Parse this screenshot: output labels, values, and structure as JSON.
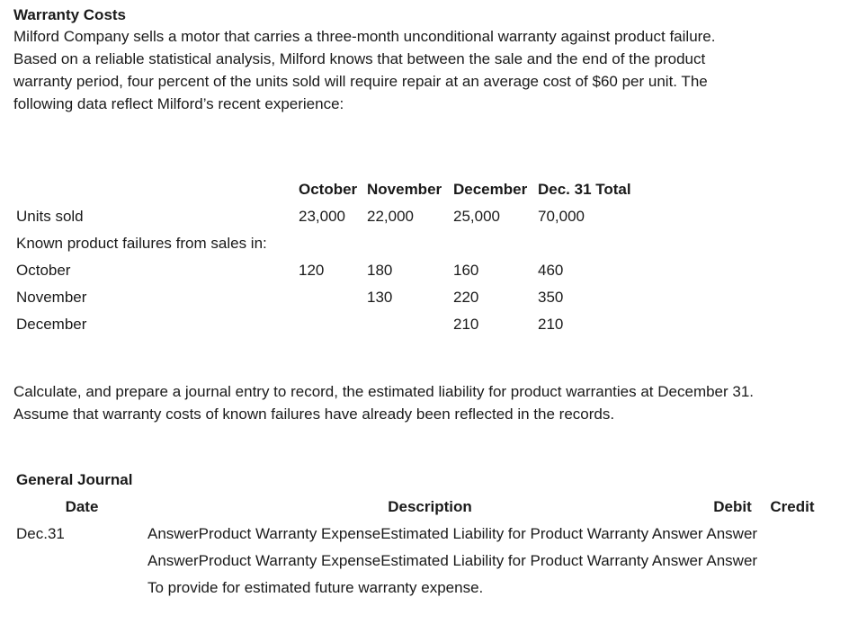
{
  "intro": {
    "title": "Warranty Costs",
    "text_1": "Milford Company sells a motor that carries a three-month unconditional warranty against product failure.",
    "text_2": "Based on a reliable statistical analysis, Milford knows that between the sale and the end of the product",
    "text_3": "warranty period, four percent of the units sold will require repair at an average cost of $60 per unit. The",
    "text_4": "following data reflect Milford’s recent experience:"
  },
  "data_table": {
    "headers": [
      "",
      "October",
      "November",
      "December",
      "Dec. 31 Total"
    ],
    "rows": [
      {
        "label": "Units sold",
        "oct": "23,000",
        "nov": "22,000",
        "dec": "25,000",
        "total": "70,000"
      },
      {
        "label": "Known product failures from sales in:",
        "oct": "",
        "nov": "",
        "dec": "",
        "total": ""
      },
      {
        "label": "October",
        "oct": "120",
        "nov": "180",
        "dec": "160",
        "total": "460"
      },
      {
        "label": "November",
        "oct": "",
        "nov": "130",
        "dec": "220",
        "total": "350"
      },
      {
        "label": "December",
        "oct": "",
        "nov": "",
        "dec": "210",
        "total": "210"
      }
    ]
  },
  "instruction": {
    "line_1": "Calculate, and prepare a journal entry to record, the estimated liability for product warranties at December 31.",
    "line_2": "Assume that warranty costs of known failures have already been reflected in the records."
  },
  "journal": {
    "title": "General Journal",
    "headers": {
      "date": "Date",
      "description": "Description",
      "debit": "Debit",
      "credit": "Credit"
    },
    "date": "Dec.31",
    "line_1": "AnswerProduct Warranty ExpenseEstimated Liability for Product Warranty Answer Answer",
    "line_2": "AnswerProduct Warranty ExpenseEstimated Liability for Product Warranty Answer Answer",
    "memo": "To provide for estimated future warranty expense."
  }
}
